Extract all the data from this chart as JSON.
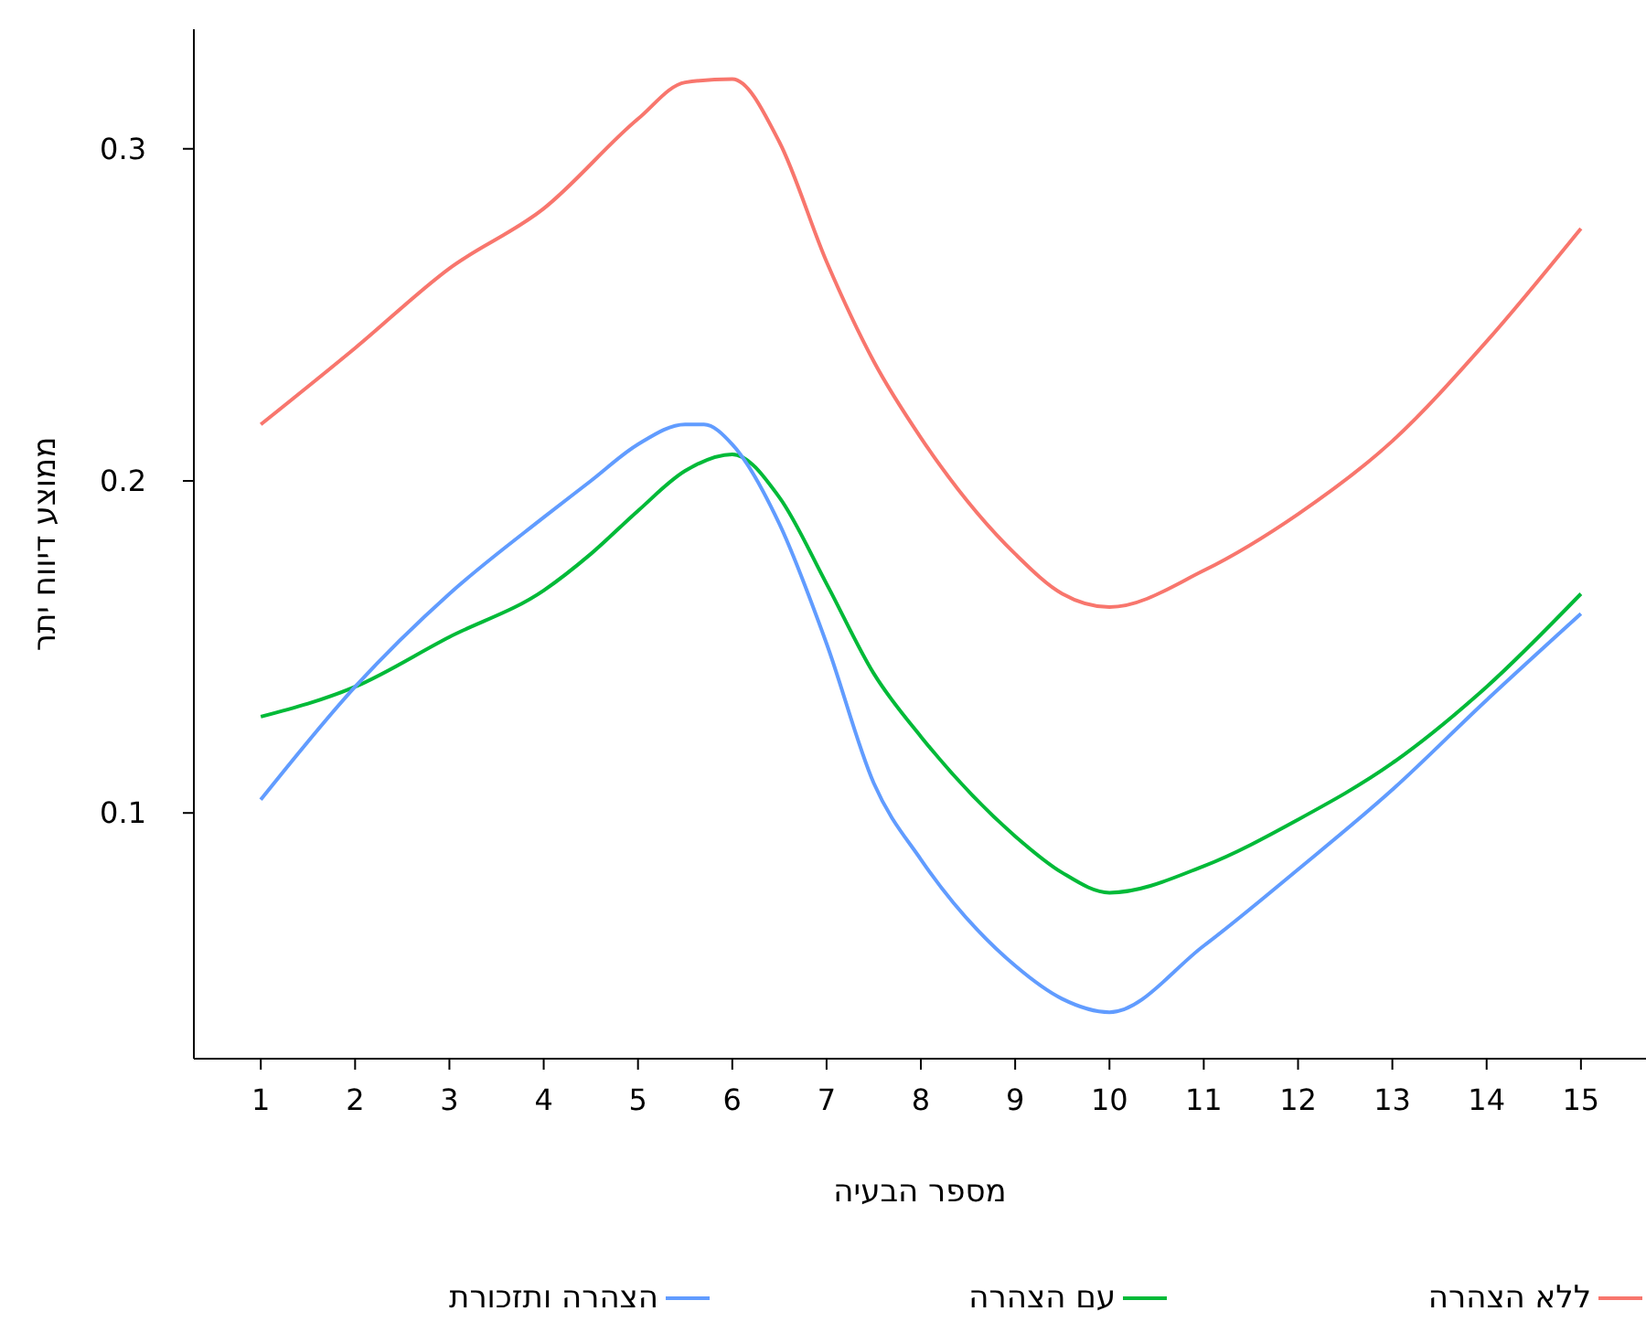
{
  "chart_data": {
    "type": "line",
    "xlabel": "מספר הבעיה",
    "ylabel": "ממוצע דיווח יתר",
    "xlim": [
      0.29,
      15.69
    ],
    "xticks": [
      1,
      2,
      3,
      4,
      5,
      6,
      7,
      8,
      9,
      10,
      11,
      12,
      13,
      14,
      15
    ],
    "ylim": [
      0.026,
      0.336
    ],
    "yticks": [
      0.1,
      0.2,
      0.3
    ],
    "grid": false,
    "legend": "bottom",
    "marker": "none",
    "line_style": "solid",
    "series": [
      {
        "name": "ללא הצהרה",
        "color": "#f8766d",
        "x": [
          1,
          2,
          3,
          4,
          5,
          5.5,
          6,
          6.5,
          7,
          7.5,
          8,
          9,
          9.5,
          10,
          11,
          12,
          13,
          14,
          15
        ],
        "values": [
          0.217,
          0.24,
          0.264,
          0.282,
          0.309,
          0.32,
          0.321,
          0.302,
          0.266,
          0.236,
          0.213,
          0.178,
          0.166,
          0.162,
          0.173,
          0.19,
          0.212,
          0.242,
          0.276
        ]
      },
      {
        "name": "עם הצהרה",
        "color": "#00ba38",
        "x": [
          1,
          2,
          3,
          4,
          4.5,
          5,
          5.5,
          6,
          6.5,
          7,
          7.5,
          8,
          9,
          9.5,
          10,
          11,
          12,
          13,
          14,
          15
        ],
        "values": [
          0.129,
          0.138,
          0.153,
          0.167,
          0.178,
          0.191,
          0.203,
          0.208,
          0.195,
          0.169,
          0.142,
          0.123,
          0.093,
          0.082,
          0.076,
          0.084,
          0.098,
          0.115,
          0.138,
          0.166
        ]
      },
      {
        "name": "הצהרה ותזכורת",
        "color": "#619cff",
        "x": [
          1,
          2,
          3,
          4,
          4.5,
          5,
          5.5,
          5.7,
          6,
          6.5,
          7,
          7.5,
          8,
          9,
          9.5,
          10,
          11,
          12,
          13,
          14,
          15
        ],
        "values": [
          0.104,
          0.138,
          0.166,
          0.189,
          0.2,
          0.211,
          0.217,
          0.217,
          0.211,
          0.187,
          0.151,
          0.109,
          0.086,
          0.054,
          0.044,
          0.04,
          0.06,
          0.083,
          0.107,
          0.134,
          0.16
        ]
      }
    ]
  }
}
